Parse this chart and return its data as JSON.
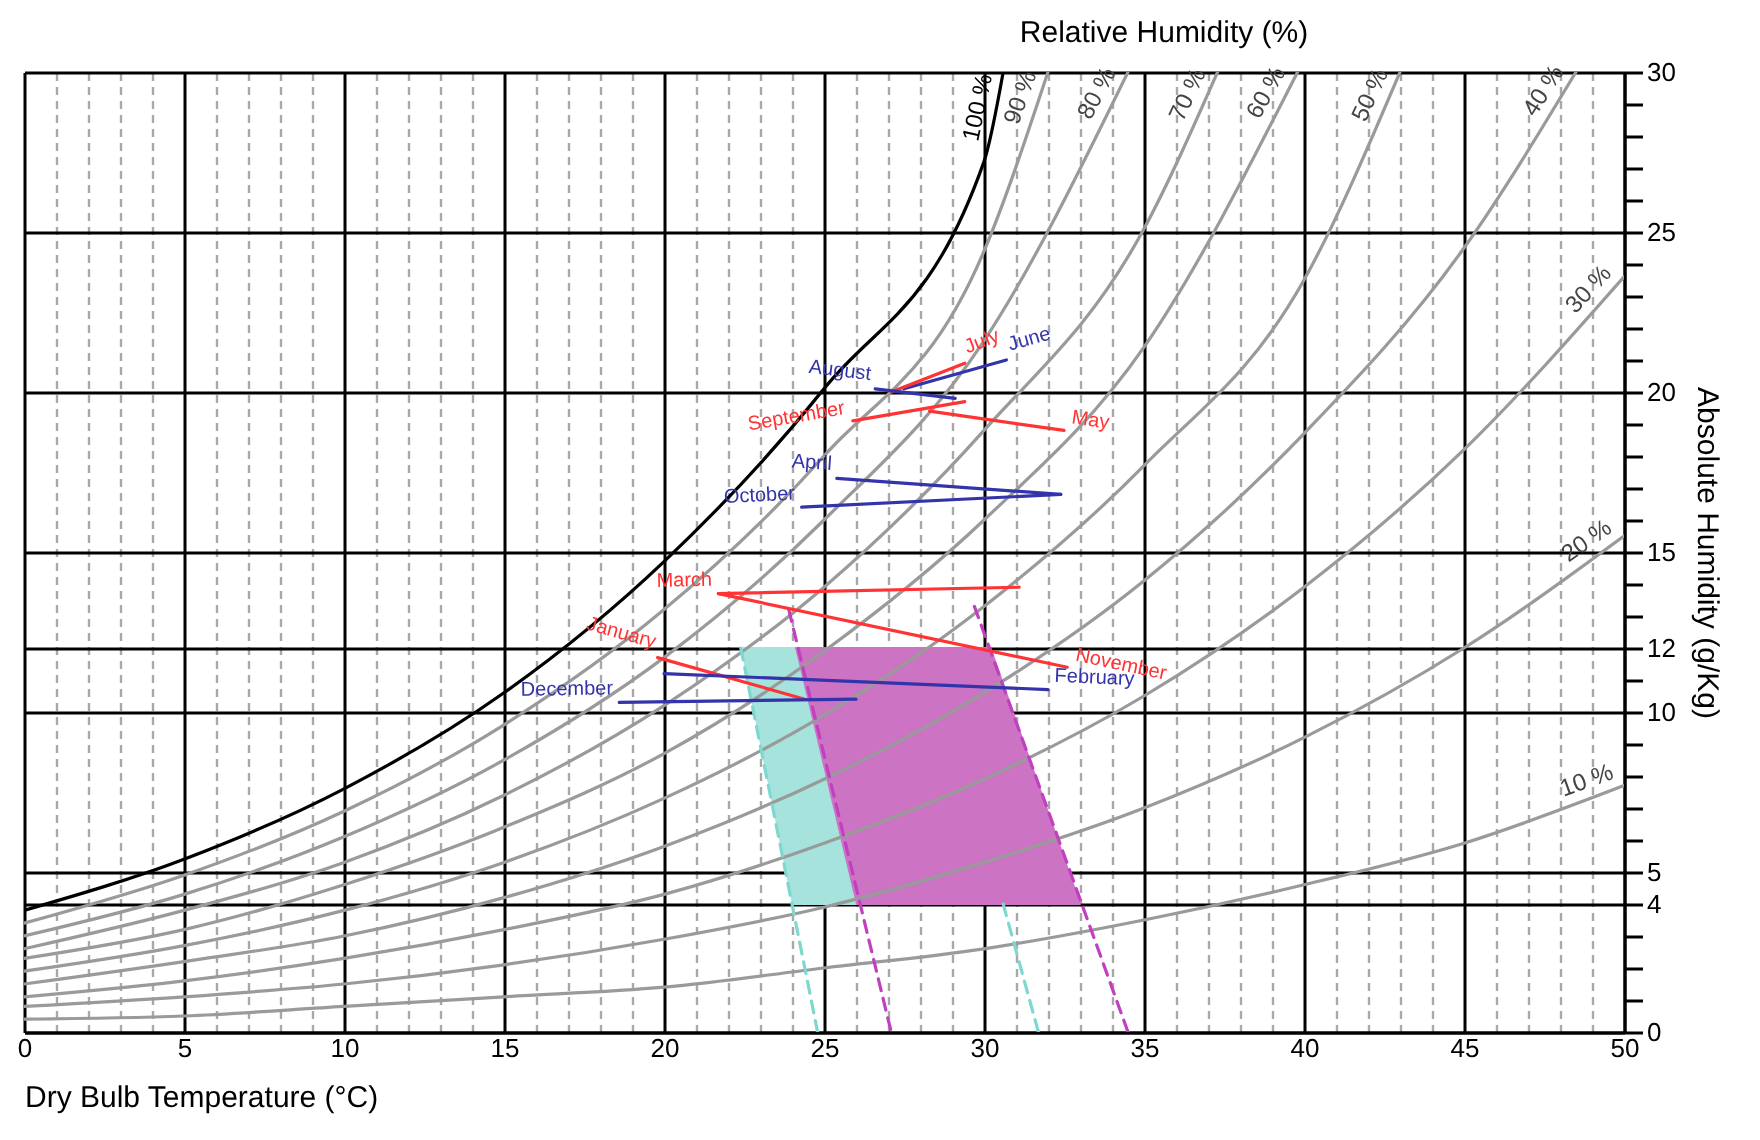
{
  "chart_data": {
    "type": "line",
    "title": "Relative Humidity (%)",
    "xlabel": "Dry Bulb Temperature (°C)",
    "ylabel": "Absolute Humidity (g/Kg)",
    "xlim": [
      0,
      50
    ],
    "ylim": [
      0,
      30
    ],
    "xticks": [
      0,
      {
        "value": 1,
        "label": null
      },
      {
        "value": 2,
        "label": null
      },
      {
        "value": 3,
        "label": null
      },
      {
        "value": 4,
        "label": null
      },
      5,
      {
        "value": 6,
        "label": null
      },
      {
        "value": 7,
        "label": null
      },
      {
        "value": 8,
        "label": null
      },
      {
        "value": 9,
        "label": null
      },
      10,
      {
        "value": 11,
        "label": null
      },
      {
        "value": 12,
        "label": null
      },
      {
        "value": 13,
        "label": null
      },
      {
        "value": 14,
        "label": null
      },
      15,
      {
        "value": 16,
        "label": null
      },
      {
        "value": 17,
        "label": null
      },
      {
        "value": 18,
        "label": null
      },
      {
        "value": 19,
        "label": null
      },
      20,
      {
        "value": 21,
        "label": null
      },
      {
        "value": 22,
        "label": null
      },
      {
        "value": 23,
        "label": null
      },
      {
        "value": 24,
        "label": null
      },
      25,
      {
        "value": 26,
        "label": null
      },
      {
        "value": 27,
        "label": null
      },
      {
        "value": 28,
        "label": null
      },
      {
        "value": 29,
        "label": null
      },
      30,
      {
        "value": 31,
        "label": null
      },
      {
        "value": 32,
        "label": null
      },
      {
        "value": 33,
        "label": null
      },
      {
        "value": 34,
        "label": null
      },
      35,
      {
        "value": 36,
        "label": null
      },
      {
        "value": 37,
        "label": null
      },
      {
        "value": 38,
        "label": null
      },
      {
        "value": 39,
        "label": null
      },
      40,
      {
        "value": 41,
        "label": null
      },
      {
        "value": 42,
        "label": null
      },
      {
        "value": 43,
        "label": null
      },
      {
        "value": 44,
        "label": null
      },
      45,
      {
        "value": 46,
        "label": null
      },
      {
        "value": 47,
        "label": null
      },
      {
        "value": 48,
        "label": null
      },
      {
        "value": 49,
        "label": null
      },
      50
    ],
    "yticks": [
      0,
      {
        "value": 1,
        "label": null
      },
      {
        "value": 2,
        "label": null
      },
      {
        "value": 3,
        "label": null
      },
      4,
      5,
      {
        "value": 6,
        "label": null
      },
      {
        "value": 7,
        "label": null
      },
      {
        "value": 8,
        "label": null
      },
      {
        "value": 9,
        "label": null
      },
      10,
      {
        "value": 11,
        "label": null
      },
      12,
      {
        "value": 13,
        "label": null
      },
      {
        "value": 14,
        "label": null
      },
      15,
      {
        "value": 16,
        "label": null
      },
      {
        "value": 17,
        "label": null
      },
      {
        "value": 18,
        "label": null
      },
      {
        "value": 19,
        "label": null
      },
      20,
      {
        "value": 21,
        "label": null
      },
      {
        "value": 22,
        "label": null
      },
      {
        "value": 23,
        "label": null
      },
      {
        "value": 24,
        "label": null
      },
      25,
      {
        "value": 26,
        "label": null
      },
      {
        "value": 27,
        "label": null
      },
      {
        "value": 28,
        "label": null
      },
      {
        "value": 29,
        "label": null
      },
      30
    ],
    "grid": true,
    "series": [
      {
        "type": "area",
        "color": "#a6e3dd",
        "x": [
          22.4,
          27.8,
          30.6,
          24.0
        ],
        "values": [
          12,
          12,
          4,
          4
        ]
      },
      {
        "type": "area",
        "color": "#cc73c4",
        "x": [
          24.1,
          30.2,
          33.0,
          26.0
        ],
        "values": [
          12,
          12,
          4,
          4
        ]
      },
      {
        "name": "10 %",
        "color": "#9a9a9a",
        "x": [
          0,
          5,
          10,
          15,
          20,
          25,
          30,
          35,
          40,
          45,
          50
        ],
        "values": [
          0.4,
          0.5,
          0.8,
          1.1,
          1.4,
          2.0,
          2.6,
          3.5,
          4.6,
          5.9,
          7.7
        ]
      },
      {
        "name": "20 %",
        "color": "#9a9a9a",
        "x": [
          0,
          5,
          10,
          15,
          20,
          25,
          30,
          35,
          40,
          45,
          50
        ],
        "values": [
          0.8,
          1.1,
          1.5,
          2.1,
          2.9,
          3.9,
          5.3,
          7.0,
          9.2,
          12.0,
          15.5
        ]
      },
      {
        "name": "30 %",
        "color": "#9a9a9a",
        "x": [
          0,
          5,
          10,
          15,
          20,
          25,
          30,
          35,
          40,
          45,
          50
        ],
        "values": [
          1.1,
          1.6,
          2.3,
          3.2,
          4.3,
          5.9,
          7.9,
          10.5,
          13.9,
          18.2,
          23.6
        ]
      },
      {
        "name": "40 %",
        "color": "#9a9a9a",
        "x": [
          0,
          5,
          10,
          15,
          20,
          25,
          30,
          35,
          40,
          45,
          48.5
        ],
        "values": [
          1.5,
          2.2,
          3.0,
          4.2,
          5.8,
          7.9,
          10.6,
          14.1,
          18.7,
          24.5,
          30
        ]
      },
      {
        "name": "50 %",
        "color": "#9a9a9a",
        "x": [
          0,
          5,
          10,
          15,
          20,
          25,
          30,
          35,
          40,
          43
        ],
        "values": [
          1.9,
          2.7,
          3.8,
          5.3,
          7.3,
          9.9,
          13.3,
          17.7,
          23.5,
          30
        ]
      },
      {
        "name": "60 %",
        "color": "#9a9a9a",
        "x": [
          0,
          5,
          10,
          15,
          20,
          25,
          30,
          35,
          39.8
        ],
        "values": [
          2.3,
          3.2,
          4.6,
          6.4,
          8.7,
          11.9,
          16.0,
          21.4,
          30
        ]
      },
      {
        "name": "70 %",
        "color": "#9a9a9a",
        "x": [
          0,
          5,
          10,
          15,
          20,
          25,
          30,
          35,
          37.3
        ],
        "values": [
          2.6,
          3.8,
          5.3,
          7.4,
          10.2,
          13.9,
          18.8,
          25.1,
          30
        ]
      },
      {
        "name": "80 %",
        "color": "#9a9a9a",
        "x": [
          0,
          5,
          10,
          15,
          20,
          25,
          30,
          34.5
        ],
        "values": [
          3.0,
          4.3,
          6.1,
          8.5,
          11.7,
          16.0,
          21.6,
          30
        ]
      },
      {
        "name": "90 %",
        "color": "#9a9a9a",
        "x": [
          0,
          5,
          10,
          15,
          20,
          25,
          30,
          32.0
        ],
        "values": [
          3.4,
          4.9,
          6.9,
          9.6,
          13.2,
          18.0,
          24.4,
          30
        ]
      },
      {
        "name": "100 %",
        "color": "#000000",
        "x": [
          0,
          5,
          10,
          15,
          20,
          25,
          30,
          30.6
        ],
        "values": [
          3.8,
          5.4,
          7.6,
          10.6,
          14.7,
          20.1,
          27.2,
          30
        ]
      },
      {
        "color": "#7fd8d0",
        "line_style": "dashed",
        "x": [
          22.4,
          24.8
        ],
        "values": [
          12,
          0
        ]
      },
      {
        "color": "#7fd8d0",
        "line_style": "dashed",
        "x": [
          30.6,
          31.7
        ],
        "values": [
          4,
          0
        ]
      },
      {
        "color": "#c040c0",
        "line_style": "dashed",
        "x": [
          23.9,
          27.1
        ],
        "values": [
          13.2,
          0
        ]
      },
      {
        "color": "#c040c0",
        "line_style": "dashed",
        "x": [
          29.7,
          34.5
        ],
        "values": [
          13.3,
          0
        ]
      },
      {
        "name": "January",
        "color": "#ff3333",
        "x": [
          24.4,
          19.8
        ],
        "values": [
          10.4,
          11.7
        ]
      },
      {
        "name": "February",
        "color": "#3333aa",
        "x": [
          20.0,
          32.0
        ],
        "values": [
          11.2,
          10.7
        ]
      },
      {
        "name": "March",
        "color": "#ff3333",
        "x": [
          31.1,
          21.7
        ],
        "values": [
          13.9,
          13.7
        ]
      },
      {
        "name": "April",
        "color": "#3333aa",
        "x": [
          32.4,
          25.4
        ],
        "values": [
          16.8,
          17.3
        ]
      },
      {
        "name": "May",
        "color": "#ff3333",
        "x": [
          28.3,
          32.5
        ],
        "values": [
          19.4,
          18.8
        ]
      },
      {
        "name": "June",
        "color": "#3333aa",
        "x": [
          27.5,
          30.7
        ],
        "values": [
          20.1,
          21.0
        ]
      },
      {
        "name": "July",
        "color": "#ff3333",
        "x": [
          27.1,
          29.4
        ],
        "values": [
          20.0,
          20.9
        ]
      },
      {
        "name": "August",
        "color": "#3333aa",
        "x": [
          29.1,
          26.6
        ],
        "values": [
          19.8,
          20.1
        ]
      },
      {
        "name": "September",
        "color": "#ff3333",
        "x": [
          29.4,
          25.9
        ],
        "values": [
          19.7,
          19.1
        ]
      },
      {
        "name": "October",
        "color": "#3333aa",
        "x": [
          32.4,
          24.3
        ],
        "values": [
          16.8,
          16.4
        ]
      },
      {
        "name": "November",
        "color": "#ff3333",
        "x": [
          21.7,
          32.6
        ],
        "values": [
          13.7,
          11.4
        ]
      },
      {
        "name": "December",
        "color": "#3333aa",
        "x": [
          26.0,
          18.6
        ],
        "values": [
          10.4,
          10.3
        ]
      }
    ]
  }
}
